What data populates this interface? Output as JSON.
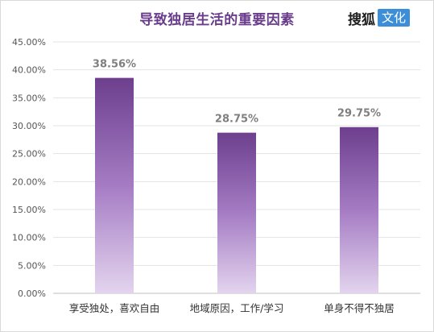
{
  "chart_data": {
    "type": "bar",
    "title": "导致独居生活的重要因素",
    "categories": [
      "享受独处，喜欢自由",
      "地域原因，工作/学习",
      "单身不得不独居"
    ],
    "values": [
      38.56,
      28.75,
      29.75
    ],
    "data_labels": [
      "38.56%",
      "28.75%",
      "29.75%"
    ],
    "ylim": [
      0,
      45
    ],
    "yticks": [
      0,
      5,
      10,
      15,
      20,
      25,
      30,
      35,
      40,
      45
    ],
    "ytick_labels": [
      "0.00%",
      "5.00%",
      "10.00%",
      "15.00%",
      "20.00%",
      "25.00%",
      "30.00%",
      "35.00%",
      "40.00%",
      "45.00%"
    ],
    "grid": true,
    "legend": "none",
    "bar_gradient": {
      "top": "#6d3f8e",
      "mid": "#a57cc4",
      "bottom": "#e3d4ee"
    }
  },
  "brand": {
    "main": "搜狐",
    "box": "文化"
  }
}
